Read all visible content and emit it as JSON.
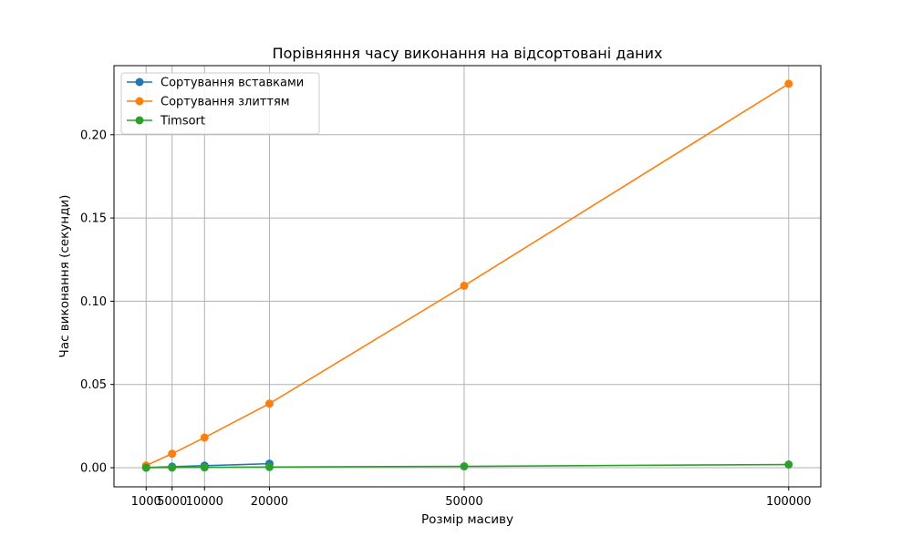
{
  "chart_data": {
    "type": "line",
    "title": "Порівняння часу виконання на відсортовані даних",
    "xlabel": "Розмір масиву",
    "ylabel": "Час виконання (секунди)",
    "xticks": [
      1000,
      5000,
      10000,
      20000,
      50000,
      100000
    ],
    "yticks": [
      0.0,
      0.05,
      0.1,
      0.15,
      0.2
    ],
    "ytick_labels": [
      "0.00",
      "0.05",
      "0.10",
      "0.15",
      "0.20"
    ],
    "xlim": [
      -3950,
      104950
    ],
    "ylim": [
      -0.0115,
      0.2415
    ],
    "grid": true,
    "legend_position": "top-left",
    "series": [
      {
        "name": "Сортування вставками",
        "color": "#1f77b4",
        "x": [
          1000,
          5000,
          10000,
          20000
        ],
        "y": [
          0.0001,
          0.0006,
          0.0012,
          0.0024
        ]
      },
      {
        "name": "Сортування злиттям",
        "color": "#ff7f0e",
        "x": [
          1000,
          5000,
          10000,
          20000,
          50000,
          100000
        ],
        "y": [
          0.0013,
          0.0084,
          0.0181,
          0.0385,
          0.1093,
          0.2306
        ]
      },
      {
        "name": "Timsort",
        "color": "#2ca02c",
        "x": [
          1000,
          5000,
          10000,
          20000,
          50000,
          100000
        ],
        "y": [
          2e-05,
          0.0001,
          0.0002,
          0.0004,
          0.0008,
          0.0019
        ]
      }
    ]
  }
}
